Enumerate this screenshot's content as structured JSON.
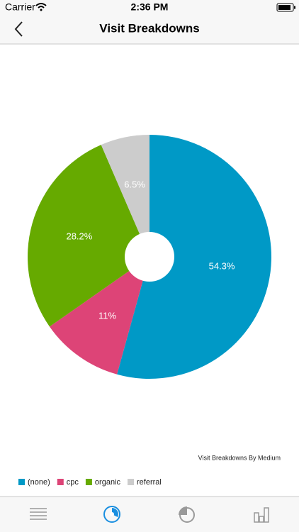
{
  "status_bar": {
    "carrier": "Carrier",
    "time": "2:36 PM"
  },
  "nav": {
    "title": "Visit Breakdowns"
  },
  "chart_data": {
    "type": "pie",
    "title": "Visit Breakdowns By Medium",
    "categories": [
      "(none)",
      "cpc",
      "organic",
      "referral"
    ],
    "values": [
      54.3,
      11,
      28.2,
      6.5
    ],
    "value_labels": [
      "54.3%",
      "11%",
      "28.2%",
      "6.5%"
    ],
    "colors": [
      "#0099c6",
      "#dd4477",
      "#66aa00",
      "#cccccc"
    ],
    "legend": "bottom-left"
  }
}
